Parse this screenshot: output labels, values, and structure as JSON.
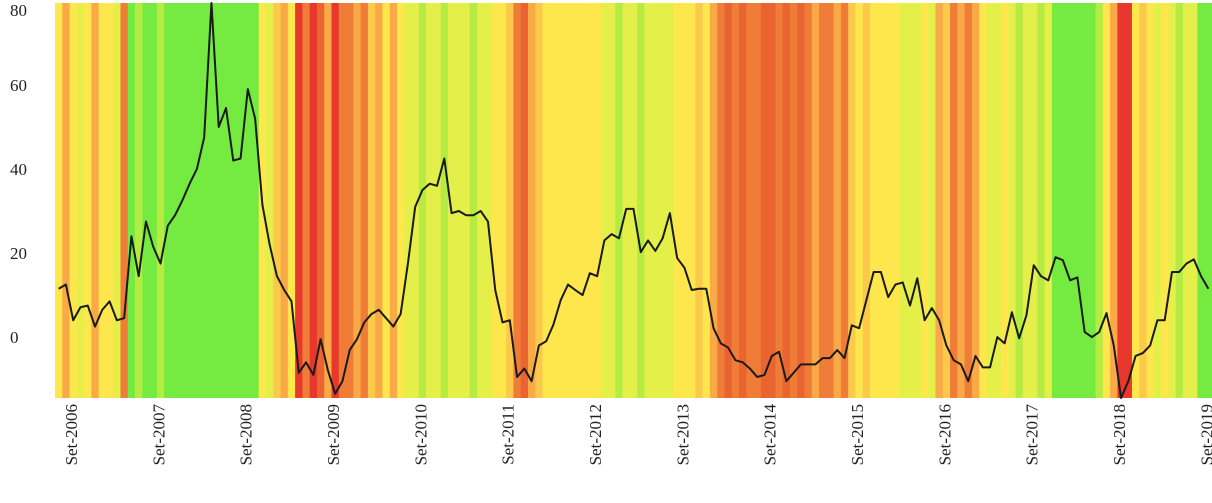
{
  "chart_data": {
    "type": "line",
    "categories": [
      null,
      null,
      "Set-2006",
      null,
      null,
      null,
      null,
      null,
      null,
      null,
      null,
      null,
      null,
      null,
      "Set-2007",
      null,
      null,
      null,
      null,
      null,
      null,
      null,
      null,
      null,
      null,
      null,
      "Set-2008",
      null,
      null,
      null,
      null,
      null,
      null,
      null,
      null,
      null,
      null,
      null,
      "Set-2009",
      null,
      null,
      null,
      null,
      null,
      null,
      null,
      null,
      null,
      null,
      null,
      "Set-2010",
      null,
      null,
      null,
      null,
      null,
      null,
      null,
      null,
      null,
      null,
      null,
      "Set-2011",
      null,
      null,
      null,
      null,
      null,
      null,
      null,
      null,
      null,
      null,
      null,
      "Set-2012",
      null,
      null,
      null,
      null,
      null,
      null,
      null,
      null,
      null,
      null,
      null,
      "Set-2013",
      null,
      null,
      null,
      null,
      null,
      null,
      null,
      null,
      null,
      null,
      null,
      "Set-2014",
      null,
      null,
      null,
      null,
      null,
      null,
      null,
      null,
      null,
      null,
      null,
      "Set-2015",
      null,
      null,
      null,
      null,
      null,
      null,
      null,
      null,
      null,
      null,
      null,
      "Set-2016",
      null,
      null,
      null,
      null,
      null,
      null,
      null,
      null,
      null,
      null,
      null,
      "Set-2017",
      null,
      null,
      null,
      null,
      null,
      null,
      null,
      null,
      null,
      null,
      null,
      "Set-2018",
      null,
      null,
      null,
      null,
      null,
      null,
      null,
      null,
      null,
      null,
      null,
      "Set-2019"
    ],
    "values": [
      12,
      13,
      4.5,
      7.6,
      8,
      3,
      7,
      9,
      4.5,
      5,
      24.5,
      15,
      28,
      22,
      18,
      27,
      29.5,
      33,
      37,
      40.5,
      48,
      80,
      50.5,
      55,
      42.5,
      43,
      59.5,
      52.5,
      32,
      22.5,
      15,
      11.7,
      9,
      -8,
      -5.5,
      -8.5,
      0,
      -7.4,
      -13,
      -10,
      -2.6,
      0,
      4,
      6,
      7,
      5,
      3,
      6,
      18,
      31.5,
      35.5,
      37,
      36.5,
      43,
      30,
      30.5,
      29.5,
      29.5,
      30.5,
      28,
      11.7,
      4,
      4.5,
      -9,
      -7,
      -10,
      -1.5,
      -0.5,
      3.5,
      9.3,
      13,
      11.7,
      10.5,
      15.7,
      15,
      23.5,
      25,
      24,
      31,
      31,
      20.7,
      23.5,
      21,
      24,
      30,
      19.3,
      17,
      11.7,
      12,
      12,
      2.6,
      -1,
      -2,
      -5,
      -5.5,
      -7,
      -9,
      -8.5,
      -4,
      -3,
      -10,
      -8,
      -6,
      -6,
      -6,
      -4.5,
      -4.5,
      -2.6,
      -4.5,
      3.3,
      2.6,
      9.3,
      16,
      16,
      10,
      13,
      13.5,
      8,
      14.5,
      4.5,
      7.4,
      4.5,
      -1.5,
      -5,
      -6,
      -10,
      -4,
      -6.7,
      -6.7,
      0.5,
      -1,
      6.4,
      0.2,
      5.7,
      17.6,
      15,
      14,
      19.5,
      18.8,
      14,
      14.7,
      1.7,
      0.5,
      1.7,
      6.2,
      -1.5,
      -14,
      -10,
      -4,
      -3.3,
      -1.5,
      4.5,
      4.5,
      16,
      16,
      18,
      19,
      15,
      12
    ],
    "color": "#1a1a1a",
    "background_colors": [
      "#fde74c",
      "#f9a945",
      "#fde74c",
      "#e5ef4a",
      "#fde74c",
      "#f9a945",
      "#fde74c",
      "#fde74c",
      "#e5ef4a",
      "#ef7d37",
      "#75ea40",
      "#b6ec42",
      "#75ea40",
      "#75ea40",
      "#b6ec42",
      "#75ea40",
      "#75ea40",
      "#75ea40",
      "#75ea40",
      "#75ea40",
      "#75ea40",
      "#75ea40",
      "#75ea40",
      "#75ea40",
      "#75ea40",
      "#75ea40",
      "#75ea40",
      "#75ea40",
      "#fde74c",
      "#e5ef4a",
      "#fcc94a",
      "#f9a945",
      "#fde74c",
      "#e8372c",
      "#ef7d37",
      "#e8372c",
      "#ea6431",
      "#f9a945",
      "#e8372c",
      "#ef7d37",
      "#ef7d37",
      "#f9a945",
      "#ef7d37",
      "#fcc94a",
      "#f9a945",
      "#fde74c",
      "#f9a945",
      "#fde74c",
      "#e5ef4a",
      "#e5ef4a",
      "#b6ec42",
      "#e5ef4a",
      "#e5ef4a",
      "#b6ec42",
      "#e5ef4a",
      "#e5ef4a",
      "#e5ef4a",
      "#b6ec42",
      "#e5ef4a",
      "#e5ef4a",
      "#fde74c",
      "#fde74c",
      "#fcc94a",
      "#ef7d37",
      "#ea6431",
      "#f9a945",
      "#fcc94a",
      "#fde74c",
      "#fde74c",
      "#fde74c",
      "#fde74c",
      "#fde74c",
      "#fde74c",
      "#fde74c",
      "#fde74c",
      "#e5ef4a",
      "#e5ef4a",
      "#b6ec42",
      "#e5ef4a",
      "#e5ef4a",
      "#b6ec42",
      "#e5ef4a",
      "#e5ef4a",
      "#e5ef4a",
      "#e5ef4a",
      "#fde74c",
      "#fde74c",
      "#fde74c",
      "#fcc94a",
      "#fde74c",
      "#f9a945",
      "#ef7d37",
      "#ea6431",
      "#ef7d37",
      "#ea6431",
      "#ef7d37",
      "#ef7d37",
      "#ea6431",
      "#ea6431",
      "#ef7d37",
      "#ea6431",
      "#ef7d37",
      "#ea6431",
      "#ef7d37",
      "#f9a945",
      "#ef7d37",
      "#ef7d37",
      "#f9a945",
      "#ef7d37",
      "#fcc94a",
      "#fde74c",
      "#fcc94a",
      "#fde74c",
      "#fde74c",
      "#fde74c",
      "#fde74c",
      "#e5ef4a",
      "#e5ef4a",
      "#e5ef4a",
      "#fde74c",
      "#e5ef4a",
      "#f9a945",
      "#fcc94a",
      "#ef7d37",
      "#f9a945",
      "#ef7d37",
      "#f9a945",
      "#fde74c",
      "#e5ef4a",
      "#e5ef4a",
      "#fde74c",
      "#e5ef4a",
      "#b6ec42",
      "#e5ef4a",
      "#e5ef4a",
      "#b6ec42",
      "#e5ef4a",
      "#75ea40",
      "#75ea40",
      "#75ea40",
      "#75ea40",
      "#75ea40",
      "#75ea40",
      "#b6ec42",
      "#fde74c",
      "#f9a945",
      "#e8372c",
      "#e8372c",
      "#fde74c",
      "#fcc94a",
      "#fde74c",
      "#e5ef4a",
      "#fde74c",
      "#e5ef4a",
      "#b6ec42",
      "#e5ef4a",
      "#e5ef4a",
      "#75ea40",
      "#75ea40"
    ],
    "ylim": [
      -14,
      80
    ],
    "yticks": [
      0,
      20,
      40,
      60,
      80
    ]
  }
}
